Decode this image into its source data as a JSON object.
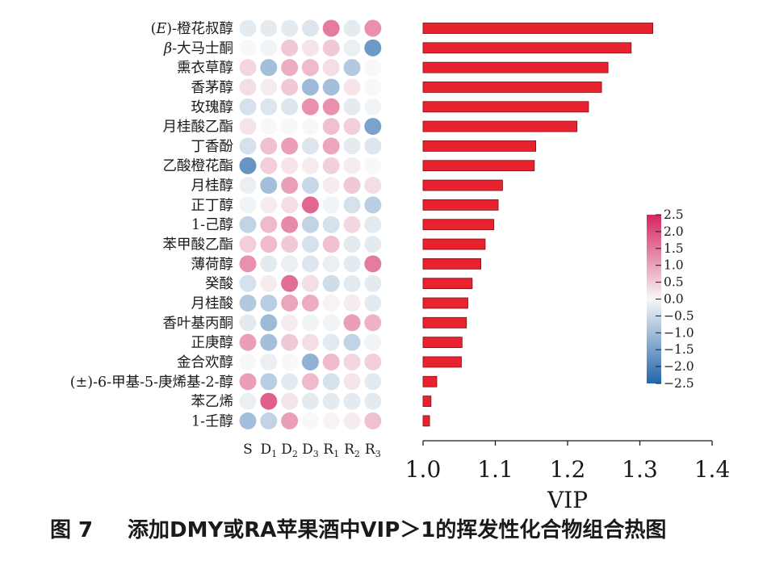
{
  "chart_data": [
    {
      "type": "heatmap",
      "title": "",
      "row_labels": [
        {
          "pre": "(",
          "it": "E",
          "post": ")-橙花叔醇"
        },
        {
          "pre": "",
          "it": "β",
          "post": "-大马士酮"
        },
        {
          "pre": "",
          "it": "",
          "post": "熏衣草醇"
        },
        {
          "pre": "",
          "it": "",
          "post": "香茅醇"
        },
        {
          "pre": "",
          "it": "",
          "post": "玫瑰醇"
        },
        {
          "pre": "",
          "it": "",
          "post": "月桂酸乙酯"
        },
        {
          "pre": "",
          "it": "",
          "post": "丁香酚"
        },
        {
          "pre": "",
          "it": "",
          "post": "乙酸橙花酯"
        },
        {
          "pre": "",
          "it": "",
          "post": "月桂醇"
        },
        {
          "pre": "",
          "it": "",
          "post": "正丁醇"
        },
        {
          "pre": "",
          "it": "",
          "post": "1-己醇"
        },
        {
          "pre": "",
          "it": "",
          "post": "苯甲酸乙酯"
        },
        {
          "pre": "",
          "it": "",
          "post": "薄荷醇"
        },
        {
          "pre": "",
          "it": "",
          "post": "癸酸"
        },
        {
          "pre": "",
          "it": "",
          "post": "月桂酸"
        },
        {
          "pre": "",
          "it": "",
          "post": "香叶基丙酮"
        },
        {
          "pre": "",
          "it": "",
          "post": "正庚醇"
        },
        {
          "pre": "",
          "it": "",
          "post": "金合欢醇"
        },
        {
          "pre": "",
          "it": "",
          "post": "(±)-6-甲基-5-庚烯基-2-醇"
        },
        {
          "pre": "",
          "it": "",
          "post": "苯乙烯"
        },
        {
          "pre": "",
          "it": "",
          "post": "1-壬醇"
        }
      ],
      "columns": [
        {
          "base": "S",
          "sub": ""
        },
        {
          "base": "D",
          "sub": "1"
        },
        {
          "base": "D",
          "sub": "2"
        },
        {
          "base": "D",
          "sub": "3"
        },
        {
          "base": "R",
          "sub": "1"
        },
        {
          "base": "R",
          "sub": "2"
        },
        {
          "base": "R",
          "sub": "3"
        }
      ],
      "values": [
        [
          -0.3,
          -0.3,
          -0.3,
          -0.4,
          1.8,
          -0.3,
          1.5
        ],
        [
          0.0,
          -0.1,
          0.7,
          0.3,
          0.7,
          -0.2,
          -2.0
        ],
        [
          0.5,
          -1.2,
          1.1,
          0.9,
          0.4,
          -1.0,
          0.0
        ],
        [
          0.4,
          0.2,
          0.7,
          -1.3,
          -1.2,
          0.3,
          0.0
        ],
        [
          -0.5,
          -0.4,
          -0.4,
          1.5,
          1.5,
          -0.3,
          -0.1
        ],
        [
          0.3,
          0.0,
          0.0,
          0.0,
          0.8,
          0.6,
          -1.8
        ],
        [
          -0.5,
          0.8,
          1.3,
          -0.4,
          1.2,
          -0.3,
          -0.4
        ],
        [
          -2.1,
          0.6,
          0.3,
          0.2,
          0.6,
          0.2,
          0.0
        ],
        [
          -0.2,
          -1.2,
          1.3,
          -0.7,
          0.2,
          0.7,
          0.4
        ],
        [
          -0.1,
          0.2,
          0.4,
          2.1,
          -0.1,
          -0.5,
          -0.9
        ],
        [
          -0.8,
          0.9,
          1.6,
          -0.8,
          -0.5,
          0.5,
          -0.3
        ],
        [
          0.6,
          0.9,
          0.7,
          -0.5,
          0.8,
          -0.3,
          -0.3
        ],
        [
          1.5,
          -0.3,
          -0.2,
          -0.4,
          -0.2,
          -0.3,
          1.8
        ],
        [
          -0.5,
          0.2,
          2.0,
          0.4,
          -0.6,
          -0.3,
          -0.3
        ],
        [
          -1.0,
          -0.9,
          1.2,
          1.1,
          0.1,
          0.2,
          -0.3
        ],
        [
          -0.3,
          -1.3,
          0.2,
          -0.1,
          -0.1,
          1.3,
          1.0
        ],
        [
          1.3,
          -1.2,
          0.7,
          0.4,
          -0.3,
          -0.8,
          -0.1
        ],
        [
          0.0,
          -0.2,
          0.0,
          -1.5,
          0.9,
          0.5,
          0.6
        ],
        [
          1.3,
          -0.9,
          -0.3,
          0.9,
          -0.5,
          0.3,
          -0.3
        ],
        [
          -0.2,
          2.2,
          0.3,
          -0.3,
          -0.3,
          -0.3,
          -0.3
        ],
        [
          -1.2,
          -0.8,
          1.3,
          0.0,
          0.1,
          0.2,
          0.8
        ]
      ],
      "colorbar": {
        "ticks": [
          "2.5",
          "2.0",
          "1.5",
          "1.0",
          "0.5",
          "0.0",
          "−0.5",
          "−1.0",
          "−1.5",
          "−2.0",
          "−2.5"
        ],
        "min": -2.5,
        "max": 2.5,
        "neg_color": "#2166ac",
        "mid_color": "#f7f7f7",
        "pos_color": "#d6245f"
      }
    },
    {
      "type": "bar",
      "orientation": "horizontal",
      "values": [
        1.318,
        1.288,
        1.256,
        1.247,
        1.229,
        1.213,
        1.156,
        1.154,
        1.11,
        1.104,
        1.098,
        1.086,
        1.08,
        1.068,
        1.062,
        1.06,
        1.054,
        1.053,
        1.019,
        1.011,
        1.009
      ],
      "xlabel": "VIP",
      "xlim": [
        1.0,
        1.4
      ],
      "xticks": [
        "1.0",
        "1.1",
        "1.2",
        "1.3",
        "1.4"
      ],
      "bar_color": "#e8232f"
    }
  ],
  "caption": {
    "number": "图 7",
    "text": "添加DMY或RA苹果酒中VIP＞1的挥发性化合物组合热图"
  }
}
